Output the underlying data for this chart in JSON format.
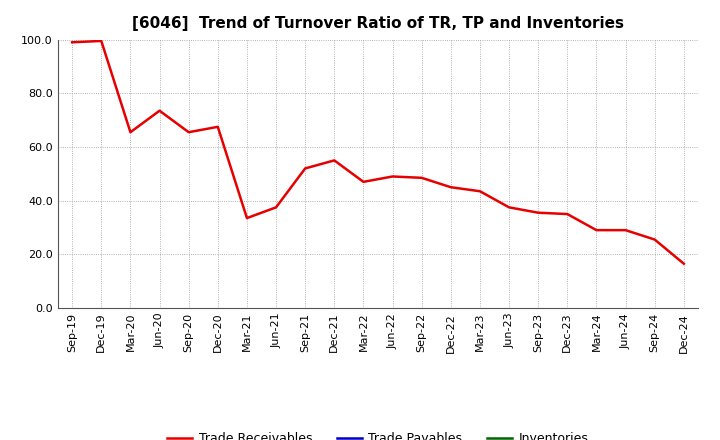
{
  "title": "[6046]  Trend of Turnover Ratio of TR, TP and Inventories",
  "x_labels": [
    "Sep-19",
    "Dec-19",
    "Mar-20",
    "Jun-20",
    "Sep-20",
    "Dec-20",
    "Mar-21",
    "Jun-21",
    "Sep-21",
    "Dec-21",
    "Mar-22",
    "Jun-22",
    "Sep-22",
    "Dec-22",
    "Mar-23",
    "Jun-23",
    "Sep-23",
    "Dec-23",
    "Mar-24",
    "Jun-24",
    "Sep-24",
    "Dec-24"
  ],
  "trade_receivables": [
    99.0,
    99.5,
    65.5,
    73.5,
    65.5,
    67.5,
    33.5,
    37.5,
    52.0,
    55.0,
    47.0,
    49.0,
    48.5,
    45.0,
    43.5,
    37.5,
    35.5,
    35.0,
    29.0,
    29.0,
    25.5,
    16.5
  ],
  "trade_payables": [
    null,
    null,
    null,
    null,
    null,
    null,
    null,
    null,
    null,
    null,
    null,
    null,
    null,
    null,
    null,
    null,
    null,
    null,
    null,
    null,
    null,
    null
  ],
  "inventories": [
    null,
    null,
    null,
    null,
    null,
    null,
    null,
    null,
    null,
    null,
    null,
    null,
    null,
    null,
    null,
    null,
    null,
    null,
    null,
    null,
    null,
    null
  ],
  "tr_color": "#e60000",
  "tp_color": "#0000cc",
  "inv_color": "#006600",
  "ylim": [
    0,
    100
  ],
  "yticks": [
    0.0,
    20.0,
    40.0,
    60.0,
    80.0,
    100.0
  ],
  "background_color": "#ffffff",
  "grid_color": "#999999",
  "title_fontsize": 11,
  "tick_fontsize": 8,
  "legend_fontsize": 9,
  "legend_labels": [
    "Trade Receivables",
    "Trade Payables",
    "Inventories"
  ]
}
